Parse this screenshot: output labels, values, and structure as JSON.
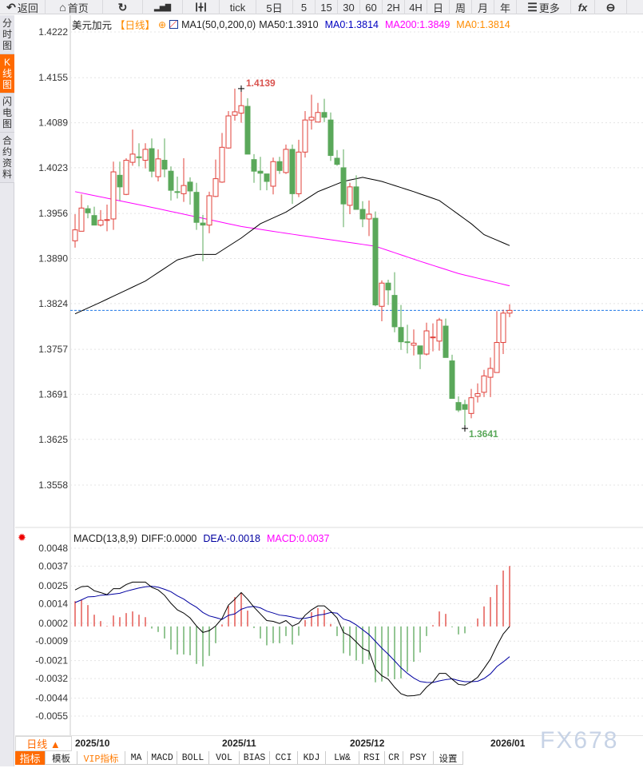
{
  "toolbar": {
    "items": [
      {
        "icon": "back-arrow-icon",
        "label": "返回",
        "w": 57
      },
      {
        "icon": "home-icon",
        "label": "首页",
        "w": 72
      },
      {
        "icon": "refresh-icon",
        "label": "",
        "w": 50
      },
      {
        "icon": "bar-chart-icon",
        "label": "",
        "w": 50
      },
      {
        "icon": "candlestick-icon",
        "label": "",
        "w": 46
      },
      {
        "icon": "",
        "label": "tick",
        "w": 46
      },
      {
        "icon": "",
        "label": "5日",
        "w": 46
      },
      {
        "icon": "",
        "label": "5",
        "w": 28
      },
      {
        "icon": "",
        "label": "15",
        "w": 28
      },
      {
        "icon": "",
        "label": "30",
        "w": 28
      },
      {
        "icon": "",
        "label": "60",
        "w": 28
      },
      {
        "icon": "",
        "label": "2H",
        "w": 28
      },
      {
        "icon": "",
        "label": "4H",
        "w": 28
      },
      {
        "icon": "",
        "label": "日",
        "w": 28
      },
      {
        "icon": "",
        "label": "周",
        "w": 28
      },
      {
        "icon": "",
        "label": "月",
        "w": 28
      },
      {
        "icon": "",
        "label": "年",
        "w": 28
      },
      {
        "icon": "menu-icon",
        "label": "更多",
        "w": 68
      },
      {
        "icon": "",
        "label": "fx",
        "w": 30
      },
      {
        "icon": "zoom-out-icon",
        "label": "",
        "w": 40
      }
    ]
  },
  "sidebar": {
    "items": [
      {
        "label": "分时图",
        "active": false
      },
      {
        "label": "K线图",
        "active": true
      },
      {
        "label": "闪电图",
        "active": false
      },
      {
        "label": "合约资料",
        "active": false
      }
    ]
  },
  "legend": {
    "symbol": "美元加元",
    "period": "【日线】",
    "ma_params": "MA1(50,0,200,0)",
    "ma50": "MA50:1.3910",
    "ma0": "MA0:1.3814",
    "ma200": "MA200:1.3849",
    "ma0b": "MA0:1.3814"
  },
  "colors": {
    "up": "#e0403a",
    "down": "#5aa85a",
    "ma50": "#000000",
    "ma200": "#ff00ff",
    "dea": "#0000a0",
    "macd_label": "#ff00ff",
    "ma0": "#0000c0",
    "ma0b": "#ff8c00",
    "accent": "#ff6a00",
    "last_price_line": "#1e78e6"
  },
  "price_axis": {
    "ticks": [
      "1.4222",
      "1.4155",
      "1.4089",
      "1.4023",
      "1.3956",
      "1.3890",
      "1.3824",
      "1.3757",
      "1.3691",
      "1.3625",
      "1.3558"
    ],
    "range": [
      1.3558,
      1.4222
    ]
  },
  "candles": [
    [
      1.3916,
      1.3955,
      1.3906,
      1.3932
    ],
    [
      1.393,
      1.3984,
      1.393,
      1.3964
    ],
    [
      1.3963,
      1.3968,
      1.3949,
      1.3957
    ],
    [
      1.3953,
      1.3966,
      1.3939,
      1.3939
    ],
    [
      1.3939,
      1.3961,
      1.3937,
      1.3946
    ],
    [
      1.3946,
      1.3969,
      1.393,
      1.3947
    ],
    [
      1.3948,
      1.4032,
      1.3932,
      1.4017
    ],
    [
      1.4012,
      1.4032,
      1.3975,
      1.3995
    ],
    [
      1.3984,
      1.4037,
      1.3983,
      1.4034
    ],
    [
      1.4031,
      1.4079,
      1.4026,
      1.4043
    ],
    [
      1.4039,
      1.4059,
      1.4025,
      1.4038
    ],
    [
      1.4034,
      1.4059,
      1.4022,
      1.405
    ],
    [
      1.4051,
      1.4066,
      1.4009,
      1.4018
    ],
    [
      1.401,
      1.405,
      1.4003,
      1.4036
    ],
    [
      1.4034,
      1.4066,
      1.4009,
      1.4021
    ],
    [
      1.4018,
      1.4025,
      1.3975,
      1.399
    ],
    [
      1.3988,
      1.401,
      1.3978,
      1.3987
    ],
    [
      1.3985,
      1.4037,
      1.3973,
      1.3997
    ],
    [
      1.4002,
      1.4009,
      1.3969,
      1.3989
    ],
    [
      1.3987,
      1.4001,
      1.3932,
      1.3943
    ],
    [
      1.3942,
      1.3954,
      1.3886,
      1.3939
    ],
    [
      1.3939,
      1.3988,
      1.3927,
      1.3982
    ],
    [
      1.3981,
      1.4035,
      1.398,
      1.4007
    ],
    [
      1.4002,
      1.4074,
      1.4001,
      1.4053
    ],
    [
      1.4052,
      1.4106,
      1.4051,
      1.4099
    ],
    [
      1.41,
      1.4139,
      1.4092,
      1.4105
    ],
    [
      1.4103,
      1.4138,
      1.4089,
      1.4114
    ],
    [
      1.4113,
      1.4125,
      1.4043,
      1.4043
    ],
    [
      1.4035,
      1.4043,
      1.4001,
      1.4018
    ],
    [
      1.4018,
      1.4039,
      1.399,
      1.4015
    ],
    [
      1.4014,
      1.4014,
      1.399,
      1.4003
    ],
    [
      1.3996,
      1.4038,
      1.3984,
      1.4032
    ],
    [
      1.4032,
      1.4039,
      1.4014,
      1.4019
    ],
    [
      1.4016,
      1.4057,
      1.4014,
      1.405
    ],
    [
      1.405,
      1.4057,
      1.397,
      1.3985
    ],
    [
      1.3985,
      1.4064,
      1.398,
      1.4046
    ],
    [
      1.4046,
      1.4106,
      1.4038,
      1.4093
    ],
    [
      1.4093,
      1.413,
      1.4079,
      1.4097
    ],
    [
      1.409,
      1.4118,
      1.409,
      1.4104
    ],
    [
      1.4104,
      1.4124,
      1.409,
      1.4097
    ],
    [
      1.4093,
      1.4104,
      1.4033,
      1.4041
    ],
    [
      1.4037,
      1.4049,
      1.4026,
      1.4028
    ],
    [
      1.4023,
      1.405,
      1.3936,
      1.397
    ],
    [
      1.3968,
      1.4001,
      1.3955,
      1.3995
    ],
    [
      1.3995,
      1.4012,
      1.3962,
      1.3962
    ],
    [
      1.3962,
      1.3974,
      1.3936,
      1.3948
    ],
    [
      1.3948,
      1.3975,
      1.3923,
      1.3955
    ],
    [
      1.3949,
      1.3959,
      1.382,
      1.3822
    ],
    [
      1.382,
      1.3858,
      1.3798,
      1.3854
    ],
    [
      1.3854,
      1.3859,
      1.3822,
      1.3844
    ],
    [
      1.3836,
      1.387,
      1.3782,
      1.379
    ],
    [
      1.3789,
      1.3822,
      1.3756,
      1.3768
    ],
    [
      1.3768,
      1.3793,
      1.3751,
      1.3767
    ],
    [
      1.3763,
      1.3786,
      1.3748,
      1.3766
    ],
    [
      1.3762,
      1.3762,
      1.3728,
      1.375
    ],
    [
      1.375,
      1.3796,
      1.3748,
      1.3784
    ],
    [
      1.3775,
      1.3795,
      1.3754,
      1.3775
    ],
    [
      1.3769,
      1.3803,
      1.3755,
      1.38
    ],
    [
      1.3791,
      1.3802,
      1.3745,
      1.3745
    ],
    [
      1.374,
      1.3749,
      1.3685,
      1.3685
    ],
    [
      1.3679,
      1.3688,
      1.3665,
      1.3668
    ],
    [
      1.3676,
      1.3683,
      1.3641,
      1.3669
    ],
    [
      1.3663,
      1.3699,
      1.3656,
      1.3686
    ],
    [
      1.3688,
      1.3707,
      1.3679,
      1.3692
    ],
    [
      1.3694,
      1.3727,
      1.3687,
      1.3718
    ],
    [
      1.3716,
      1.3745,
      1.3687,
      1.3729
    ],
    [
      1.3723,
      1.3813,
      1.3723,
      1.3767
    ],
    [
      1.3767,
      1.3815,
      1.375,
      1.381
    ],
    [
      1.381,
      1.3823,
      1.3804,
      1.3814
    ]
  ],
  "ma50": [
    [
      0,
      1.3809
    ],
    [
      4,
      1.3826
    ],
    [
      11,
      1.3857
    ],
    [
      16,
      1.3888
    ],
    [
      19,
      1.3896
    ],
    [
      22,
      1.3896
    ],
    [
      26,
      1.392
    ],
    [
      29,
      1.3941
    ],
    [
      33,
      1.3958
    ],
    [
      38,
      1.3988
    ],
    [
      42,
      1.4003
    ],
    [
      45,
      1.4009
    ],
    [
      48,
      1.4003
    ],
    [
      53,
      1.3988
    ],
    [
      57,
      1.3975
    ],
    [
      62,
      1.3941
    ],
    [
      64,
      1.3925
    ],
    [
      68,
      1.3909
    ]
  ],
  "ma200": [
    [
      0,
      1.3988
    ],
    [
      11,
      1.3967
    ],
    [
      26,
      1.3937
    ],
    [
      33,
      1.3927
    ],
    [
      47,
      1.3908
    ],
    [
      54,
      1.3886
    ],
    [
      60,
      1.3868
    ],
    [
      68,
      1.385
    ]
  ],
  "annotations": {
    "high": "1.4139",
    "high_index": 26,
    "low": "1.3641",
    "low_index": 61,
    "last_price": 1.3814
  },
  "macd": {
    "title": "MACD(13,8,9)",
    "diff_label": "DIFF:0.0000",
    "dea_label": "DEA:-0.0018",
    "macd_label": "MACD:0.0037",
    "ticks": [
      "0.0048",
      "0.0037",
      "0.0025",
      "0.0014",
      "0.0002",
      "-0.0009",
      "-0.0021",
      "-0.0032",
      "-0.0044",
      "-0.0055"
    ],
    "range": [
      -0.0055,
      0.0048
    ],
    "diff": [
      0.00224,
      0.00244,
      0.00247,
      0.00219,
      0.00208,
      0.00195,
      0.00232,
      0.00232,
      0.00257,
      0.00272,
      0.00272,
      0.00272,
      0.0024,
      0.00224,
      0.00191,
      0.00142,
      0.00102,
      0.00082,
      0.00052,
      3e-05,
      -0.00037,
      -0.00026,
      3e-05,
      0.00049,
      0.00131,
      0.00167,
      0.00208,
      0.00167,
      0.00118,
      0.00077,
      0.00036,
      0.00031,
      0.00018,
      0.00036,
      2e-05,
      0.0002,
      0.00069,
      0.00102,
      0.00126,
      0.00126,
      0.00093,
      0.00052,
      -0.00037,
      -0.00057,
      -0.00095,
      -0.00135,
      -0.00152,
      -0.00263,
      -0.00302,
      -0.00324,
      -0.00373,
      -0.00413,
      -0.00427,
      -0.00425,
      -0.00418,
      -0.00373,
      -0.0034,
      -0.00288,
      -0.00288,
      -0.00324,
      -0.00356,
      -0.0036,
      -0.0034,
      -0.00312,
      -0.00258,
      -0.00201,
      -0.00119,
      -0.00046,
      0.0
    ],
    "hist": [
      0.00155,
      0.00162,
      0.00131,
      0.00072,
      0.00033,
      3e-05,
      0.00067,
      0.00057,
      0.00082,
      0.00092,
      0.00072,
      0.00057,
      -0.00013,
      -0.00034,
      -0.00074,
      -0.00142,
      -0.00172,
      -0.00172,
      -0.00177,
      -0.0023,
      -0.00245,
      -0.00181,
      -0.00103,
      0.00012,
      0.00126,
      0.0018,
      0.00205,
      0.00097,
      -0.0001,
      -0.00074,
      -0.00116,
      -0.00103,
      -0.00103,
      -0.00059,
      -0.00111,
      -0.00057,
      0.00039,
      0.00088,
      0.00113,
      0.00102,
      0.00015,
      -0.00059,
      -0.00165,
      -0.0018,
      -0.00209,
      -0.0023,
      -0.00204,
      -0.00343,
      -0.00338,
      -0.00307,
      -0.00324,
      -0.00319,
      -0.00278,
      -0.00217,
      -0.0016,
      -0.00059,
      8e-05,
      0.00092,
      0.00077,
      -5e-05,
      -0.00049,
      -0.00042,
      -2e-05,
      0.00049,
      0.00123,
      0.0018,
      0.00255,
      0.00343,
      0.00371
    ]
  },
  "date_axis": {
    "labels": [
      {
        "text": "2025/10",
        "index": 0
      },
      {
        "text": "2025/11",
        "index": 23
      },
      {
        "text": "2025/12",
        "index": 43
      },
      {
        "text": "2026/01",
        "index": 65
      }
    ]
  },
  "period_selector": {
    "label": "日线 ▲"
  },
  "bottom_tabs": [
    {
      "label": "指标",
      "active": true
    },
    {
      "label": "模板"
    },
    {
      "label": "VIP指标",
      "vip": true
    },
    {
      "label": "MA"
    },
    {
      "label": "MACD"
    },
    {
      "label": "BOLL"
    },
    {
      "label": "VOL"
    },
    {
      "label": "BIAS"
    },
    {
      "label": "CCI"
    },
    {
      "label": "KDJ"
    },
    {
      "label": "LW&"
    },
    {
      "label": "RSI"
    },
    {
      "label": "CR"
    },
    {
      "label": "PSY"
    },
    {
      "label": "设置"
    }
  ],
  "watermark": "FX678"
}
